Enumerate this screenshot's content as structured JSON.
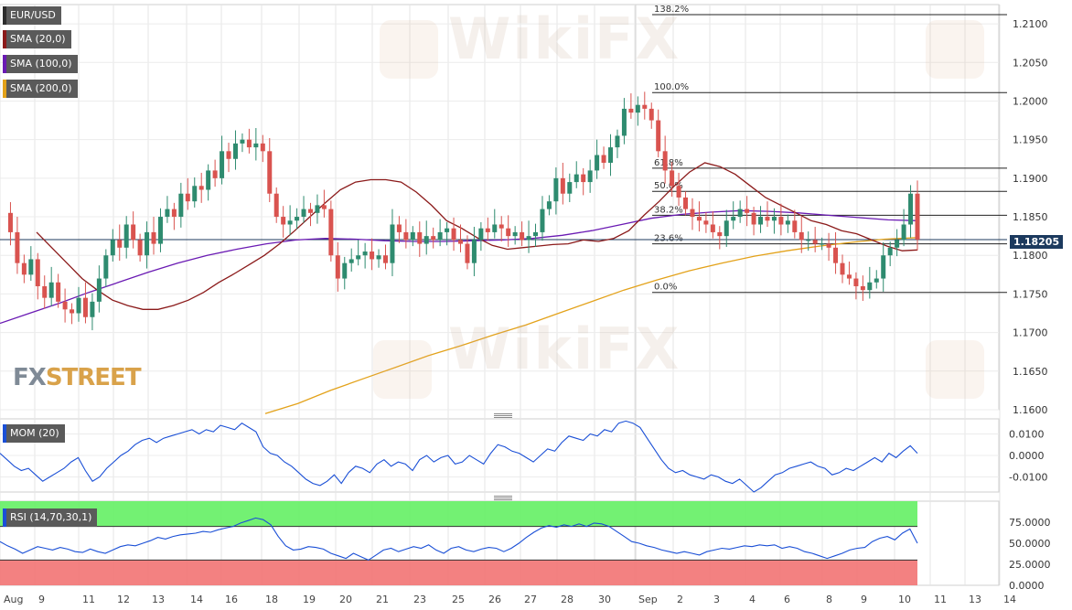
{
  "chart_data": [
    {
      "type": "candlestick",
      "symbol": "EUR/USD",
      "price_axis": {
        "ylim": [
          1.16,
          1.2125
        ],
        "ticks": [
          "1.2100",
          "1.2050",
          "1.2000",
          "1.1950",
          "1.1900",
          "1.1850",
          "1.1800",
          "1.1750",
          "1.1700",
          "1.1650",
          "1.1600"
        ],
        "tick_values": [
          1.21,
          1.205,
          1.2,
          1.195,
          1.19,
          1.185,
          1.18,
          1.175,
          1.17,
          1.165,
          1.16
        ]
      },
      "x_axis": {
        "labels": [
          "Aug",
          "9",
          "11",
          "12",
          "13",
          "14",
          "16",
          "18",
          "19",
          "20",
          "21",
          "23",
          "25",
          "26",
          "27",
          "28",
          "30",
          "Sep",
          "2",
          "3",
          "4",
          "6",
          "8",
          "9",
          "10",
          "11",
          "13",
          "14"
        ]
      },
      "last_price": "1.18205",
      "indicators": [
        {
          "name": "SMA (20,0)",
          "color": "#8b1a1a"
        },
        {
          "name": "SMA (100,0)",
          "color": "#6a1ab3"
        },
        {
          "name": "SMA (200,0)",
          "color": "#e3a21a"
        }
      ],
      "fibonacci": [
        {
          "label": "138.2%",
          "value": 1.2112
        },
        {
          "label": "100.0%",
          "value": 1.2011
        },
        {
          "label": "61.8%",
          "value": 1.1913
        },
        {
          "label": "50.0%",
          "value": 1.1883
        },
        {
          "label": "38.2%",
          "value": 1.1852
        },
        {
          "label": "23.6%",
          "value": 1.1815
        },
        {
          "label": "0.0%",
          "value": 1.1752
        }
      ],
      "close_series": [
        1.1855,
        1.183,
        1.179,
        1.1775,
        1.1795,
        1.176,
        1.1745,
        1.1765,
        1.174,
        1.173,
        1.1725,
        1.1745,
        1.172,
        1.174,
        1.177,
        1.18,
        1.182,
        1.181,
        1.184,
        1.182,
        1.18,
        1.183,
        1.1815,
        1.185,
        1.186,
        1.185,
        1.188,
        1.187,
        1.189,
        1.1885,
        1.191,
        1.19,
        1.1935,
        1.1925,
        1.1945,
        1.195,
        1.194,
        1.1945,
        1.1935,
        1.188,
        1.185,
        1.184,
        1.1845,
        1.185,
        1.186,
        1.1855,
        1.1865,
        1.186,
        1.18,
        1.177,
        1.179,
        1.1795,
        1.18,
        1.1805,
        1.1795,
        1.18,
        1.179,
        1.184,
        1.183,
        1.182,
        1.183,
        1.1815,
        1.1825,
        1.182,
        1.183,
        1.1835,
        1.182,
        1.1815,
        1.179,
        1.182,
        1.1835,
        1.183,
        1.184,
        1.1835,
        1.1825,
        1.183,
        1.182,
        1.1825,
        1.183,
        1.186,
        1.187,
        1.19,
        1.188,
        1.1895,
        1.1905,
        1.1895,
        1.191,
        1.193,
        1.192,
        1.194,
        1.1955,
        1.199,
        1.1985,
        1.1995,
        1.199,
        1.1975,
        1.1935,
        1.191,
        1.189,
        1.1875,
        1.186,
        1.185,
        1.1845,
        1.184,
        1.183,
        1.1825,
        1.1845,
        1.185,
        1.186,
        1.1855,
        1.184,
        1.185,
        1.1845,
        1.185,
        1.184,
        1.1845,
        1.183,
        1.182,
        1.182,
        1.1815,
        1.1815,
        1.181,
        1.179,
        1.1775,
        1.177,
        1.176,
        1.1755,
        1.1765,
        1.177,
        1.18,
        1.181,
        1.182,
        1.184,
        1.188,
        1.18205
      ],
      "sma20_series": [
        1.183,
        1.181,
        1.179,
        1.177,
        1.1755,
        1.1742,
        1.1735,
        1.173,
        1.173,
        1.1735,
        1.1742,
        1.1752,
        1.1765,
        1.1776,
        1.1788,
        1.18,
        1.1815,
        1.1832,
        1.185,
        1.1868,
        1.1885,
        1.1895,
        1.1898,
        1.1898,
        1.1895,
        1.1882,
        1.1865,
        1.1845,
        1.1835,
        1.1823,
        1.1813,
        1.1808,
        1.181,
        1.1812,
        1.1814,
        1.1815,
        1.182,
        1.1818,
        1.1822,
        1.1832,
        1.1852,
        1.187,
        1.189,
        1.1908,
        1.192,
        1.1915,
        1.1905,
        1.189,
        1.1875,
        1.1865,
        1.1855,
        1.1845,
        1.184,
        1.1832,
        1.1828,
        1.182,
        1.1812,
        1.1806,
        1.1807
      ],
      "sma100_series": [
        1.1712,
        1.1725,
        1.1738,
        1.1752,
        1.1765,
        1.1778,
        1.179,
        1.18,
        1.1808,
        1.1815,
        1.182,
        1.1822,
        1.1821,
        1.1819,
        1.1818,
        1.1818,
        1.1819,
        1.182,
        1.1822,
        1.1826,
        1.1832,
        1.184,
        1.1848,
        1.1853,
        1.1856,
        1.1858,
        1.1857,
        1.1855,
        1.1852,
        1.1849,
        1.1846,
        1.1845
      ],
      "sma200_series": [
        1.1595,
        1.1608,
        1.1625,
        1.164,
        1.1655,
        1.167,
        1.1683,
        1.1697,
        1.171,
        1.1725,
        1.174,
        1.1755,
        1.1768,
        1.178,
        1.179,
        1.1799,
        1.1806,
        1.1812,
        1.1817,
        1.1821,
        1.1823
      ]
    },
    {
      "type": "line",
      "name": "MOM (20)",
      "color": "#1a4fd6",
      "ylim": [
        -0.017,
        0.017
      ],
      "ticks": [
        "0.0100",
        "0.0000",
        "-0.0100"
      ],
      "tick_values": [
        0.01,
        0,
        -0.01
      ],
      "values": [
        0.001,
        -0.002,
        -0.005,
        -0.007,
        -0.006,
        -0.009,
        -0.012,
        -0.01,
        -0.008,
        -0.006,
        -0.003,
        -0.001,
        -0.007,
        -0.012,
        -0.01,
        -0.006,
        -0.003,
        0.0,
        0.002,
        0.005,
        0.007,
        0.008,
        0.006,
        0.008,
        0.009,
        0.01,
        0.011,
        0.012,
        0.01,
        0.012,
        0.011,
        0.014,
        0.013,
        0.012,
        0.015,
        0.013,
        0.011,
        0.004,
        0.001,
        0.0,
        -0.003,
        -0.005,
        -0.008,
        -0.011,
        -0.013,
        -0.014,
        -0.012,
        -0.009,
        -0.013,
        -0.008,
        -0.005,
        -0.006,
        -0.008,
        -0.004,
        -0.002,
        -0.005,
        -0.003,
        -0.004,
        -0.007,
        -0.002,
        0.0,
        -0.003,
        -0.001,
        0.0,
        -0.004,
        -0.003,
        0.0,
        -0.002,
        -0.004,
        0.001,
        0.005,
        0.004,
        0.002,
        0.001,
        -0.001,
        -0.003,
        0.0,
        0.003,
        0.002,
        0.006,
        0.009,
        0.008,
        0.007,
        0.01,
        0.009,
        0.012,
        0.011,
        0.015,
        0.016,
        0.015,
        0.013,
        0.008,
        0.003,
        -0.002,
        -0.006,
        -0.008,
        -0.007,
        -0.009,
        -0.01,
        -0.011,
        -0.009,
        -0.01,
        -0.012,
        -0.013,
        -0.011,
        -0.014,
        -0.017,
        -0.015,
        -0.012,
        -0.009,
        -0.008,
        -0.006,
        -0.005,
        -0.004,
        -0.003,
        -0.005,
        -0.006,
        -0.009,
        -0.008,
        -0.006,
        -0.007,
        -0.005,
        -0.003,
        -0.001,
        -0.003,
        0.001,
        -0.001,
        0.002,
        0.0045,
        0.001
      ]
    },
    {
      "type": "line",
      "name": "RSI (14,70,30,1)",
      "color": "#1a4fd6",
      "ylim": [
        0,
        100
      ],
      "overbought": 70,
      "oversold": 30,
      "ticks": [
        "75.0000",
        "50.0000",
        "25.0000",
        "0.0000"
      ],
      "tick_values": [
        75,
        50,
        25,
        0
      ],
      "values": [
        52,
        47,
        43,
        38,
        42,
        46,
        44,
        42,
        45,
        43,
        40,
        39,
        43,
        40,
        38,
        42,
        46,
        48,
        47,
        50,
        53,
        57,
        55,
        58,
        60,
        61,
        62,
        64,
        63,
        66,
        68,
        70,
        74,
        77,
        80,
        78,
        72,
        58,
        47,
        42,
        43,
        46,
        45,
        43,
        38,
        35,
        32,
        38,
        34,
        30,
        36,
        42,
        44,
        40,
        43,
        46,
        44,
        48,
        42,
        38,
        44,
        46,
        42,
        40,
        43,
        45,
        44,
        40,
        44,
        50,
        57,
        63,
        68,
        71,
        69,
        72,
        70,
        73,
        70,
        74,
        73,
        70,
        64,
        58,
        52,
        50,
        47,
        45,
        42,
        40,
        38,
        40,
        38,
        36,
        40,
        42,
        44,
        43,
        45,
        47,
        46,
        48,
        47,
        48,
        44,
        46,
        44,
        40,
        38,
        35,
        32,
        35,
        38,
        42,
        44,
        45,
        52,
        56,
        58,
        54,
        62,
        67,
        50
      ]
    }
  ]
}
